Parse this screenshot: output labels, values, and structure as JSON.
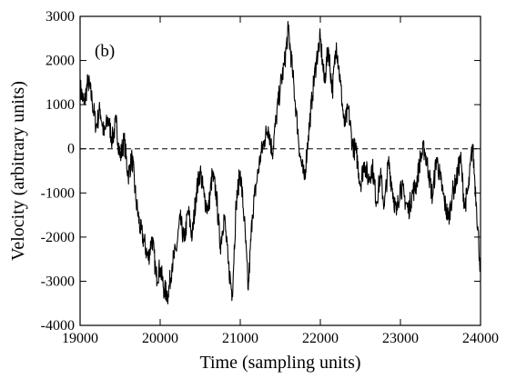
{
  "chart_data": {
    "type": "line",
    "panel_label": "(b)",
    "xlabel": "Time (sampling units)",
    "ylabel": "Velocity (arbitrary units)",
    "xlim": [
      19000,
      24000
    ],
    "ylim": [
      -4000,
      3000
    ],
    "x_ticks": [
      19000,
      20000,
      21000,
      22000,
      23000,
      24000
    ],
    "y_ticks": [
      -4000,
      -3000,
      -2000,
      -1000,
      0,
      1000,
      2000,
      3000
    ],
    "reference_line": {
      "y": 0,
      "style": "dashed"
    },
    "grid": false,
    "series": [
      {
        "color": "#000000",
        "x": [
          19000,
          19050,
          19100,
          19150,
          19200,
          19250,
          19300,
          19350,
          19400,
          19450,
          19500,
          19550,
          19600,
          19650,
          19700,
          19750,
          19800,
          19850,
          19900,
          19950,
          20000,
          20050,
          20100,
          20150,
          20200,
          20250,
          20300,
          20350,
          20400,
          20450,
          20500,
          20550,
          20600,
          20650,
          20700,
          20750,
          20800,
          20850,
          20900,
          20950,
          21000,
          21050,
          21100,
          21150,
          21200,
          21250,
          21300,
          21350,
          21400,
          21450,
          21500,
          21550,
          21600,
          21650,
          21700,
          21750,
          21800,
          21850,
          21900,
          21950,
          22000,
          22050,
          22100,
          22150,
          22200,
          22250,
          22300,
          22350,
          22400,
          22450,
          22500,
          22550,
          22600,
          22650,
          22700,
          22750,
          22800,
          22850,
          22900,
          22950,
          23000,
          23050,
          23100,
          23150,
          23200,
          23250,
          23300,
          23350,
          23400,
          23450,
          23500,
          23550,
          23600,
          23650,
          23700,
          23750,
          23800,
          23850,
          23900,
          23950,
          24000
        ],
        "y": [
          1400,
          1000,
          1550,
          1100,
          500,
          900,
          300,
          700,
          200,
          600,
          -200,
          200,
          -600,
          -200,
          -1200,
          -1800,
          -2100,
          -2500,
          -2000,
          -2900,
          -2700,
          -3200,
          -3300,
          -2600,
          -2300,
          -1600,
          -2100,
          -1400,
          -2000,
          -1000,
          -500,
          -1100,
          -1400,
          -600,
          -1000,
          -2200,
          -1500,
          -2600,
          -3300,
          -1200,
          -500,
          -1600,
          -3200,
          -1500,
          -800,
          -200,
          200,
          500,
          -100,
          700,
          1400,
          1900,
          2700,
          1800,
          800,
          -200,
          -700,
          300,
          1200,
          2000,
          2500,
          1500,
          2300,
          1300,
          2400,
          1500,
          500,
          900,
          100,
          -100,
          -800,
          -300,
          -700,
          -400,
          -1200,
          -600,
          -1300,
          -300,
          -900,
          -1500,
          -800,
          -1100,
          -1400,
          -1000,
          -800,
          -200,
          0,
          -500,
          -1100,
          -200,
          -700,
          -1200,
          -1600,
          -1000,
          -700,
          -200,
          -1300,
          -900,
          100,
          -1300,
          -2800
        ]
      }
    ]
  }
}
